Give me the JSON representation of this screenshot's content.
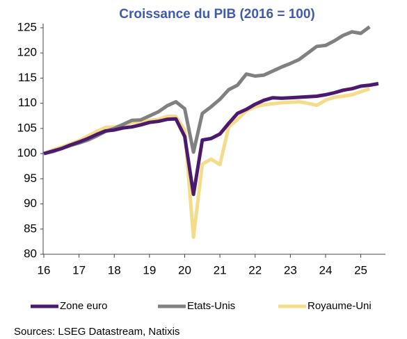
{
  "chart_data": {
    "type": "line",
    "title": "Croissance du PIB (2016 = 100)",
    "source": "Sources: LSEG Datastream, Natixis",
    "x": [
      16,
      16.25,
      16.5,
      16.75,
      17,
      17.25,
      17.5,
      17.75,
      18,
      18.25,
      18.5,
      18.75,
      19,
      19.25,
      19.5,
      19.75,
      20,
      20.25,
      20.5,
      20.75,
      21,
      21.25,
      21.5,
      21.75,
      22,
      22.25,
      22.5,
      22.75,
      23,
      23.25,
      23.5,
      23.75,
      24,
      24.25,
      24.5,
      24.75,
      25,
      25.25,
      25.5
    ],
    "series": [
      {
        "name": "Zone euro",
        "color": "#4b1a6e",
        "values": [
          100,
          100.5,
          101,
          101.7,
          102.3,
          103,
          103.8,
          104.5,
          104.7,
          105.1,
          105.3,
          105.7,
          106.2,
          106.4,
          106.8,
          106.9,
          103.4,
          91.9,
          102.7,
          103.0,
          103.9,
          106.0,
          108.0,
          108.8,
          109.8,
          110.6,
          111.1,
          111.0,
          111.1,
          111.2,
          111.3,
          111.4,
          111.7,
          112.1,
          112.6,
          112.9,
          113.4,
          113.6,
          113.9
        ]
      },
      {
        "name": "Etats-Unis",
        "color": "#808080",
        "values": [
          100,
          100.4,
          101,
          101.6,
          102.1,
          102.7,
          103.5,
          104.4,
          105,
          105.8,
          106.6,
          106.7,
          107.5,
          108.3,
          109.5,
          110.3,
          108.9,
          100.3,
          108.0,
          109.3,
          110.8,
          112.7,
          113.6,
          115.8,
          115.4,
          115.6,
          116.4,
          117.2,
          117.9,
          118.7,
          120.0,
          121.3,
          121.5,
          122.4,
          123.5,
          124.2,
          123.9,
          125.2,
          null
        ]
      },
      {
        "name": "Royaume-Uni",
        "color": "#f3dc8a",
        "values": [
          100,
          100.7,
          101.3,
          101.9,
          102.6,
          103.5,
          104.4,
          105.2,
          105.3,
          105.6,
          106.2,
          106.3,
          106.6,
          106.8,
          107.4,
          107.4,
          104.7,
          83.4,
          97.9,
          98.9,
          97.8,
          105.3,
          106.8,
          108.5,
          109.3,
          109.7,
          109.9,
          110.1,
          110.2,
          110.3,
          110.0,
          109.6,
          110.6,
          111.2,
          111.4,
          111.7,
          112.3,
          112.9,
          null
        ]
      }
    ],
    "xlim": [
      16,
      25.7
    ],
    "xticks": [
      16,
      17,
      18,
      19,
      20,
      21,
      22,
      23,
      24,
      25
    ],
    "ylim": [
      80,
      125
    ],
    "yticks": [
      80,
      85,
      90,
      95,
      100,
      105,
      110,
      115,
      120,
      125
    ],
    "grid": false
  }
}
